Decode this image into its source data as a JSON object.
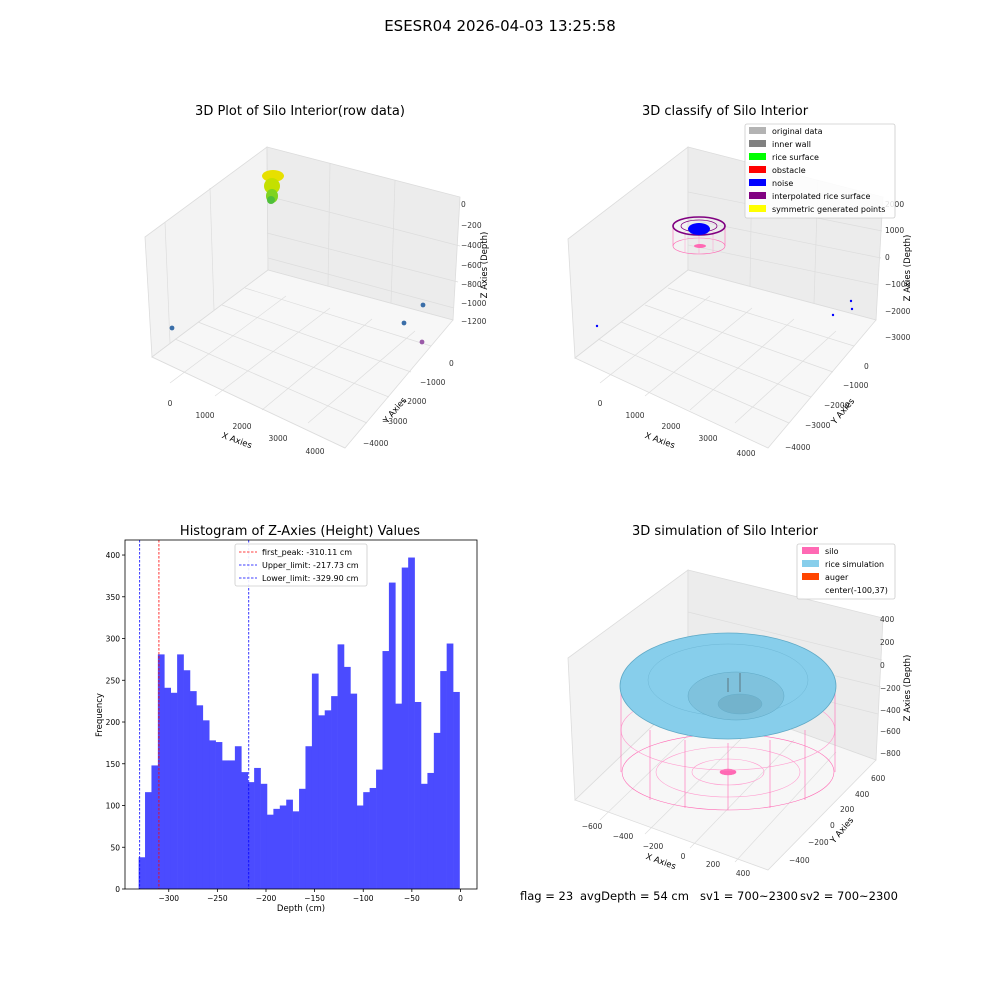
{
  "figure": {
    "title": "ESESR04 2026-04-03 13:25:58"
  },
  "panels": {
    "raw": {
      "title": "3D Plot of Silo Interior(row data)",
      "xlabel": "X Axies",
      "ylabel": "Y Axies",
      "zlabel": "Z Axies (Depth)",
      "xticks": [
        "0",
        "1000",
        "2000",
        "3000",
        "4000"
      ],
      "yticks": [
        "0",
        "−1000",
        "−2000",
        "−3000",
        "−4000"
      ],
      "zticks": [
        "0",
        "−200",
        "−400",
        "−600",
        "−800",
        "−1000",
        "−1200"
      ]
    },
    "classify": {
      "title": "3D classify of Silo Interior",
      "xlabel": "X Axies",
      "ylabel": "Y Axies",
      "zlabel": "Z Axies (Depth)",
      "xticks": [
        "0",
        "1000",
        "2000",
        "3000",
        "4000"
      ],
      "yticks": [
        "0",
        "−1000",
        "−2000",
        "−3000",
        "−4000"
      ],
      "zticks": [
        "2000",
        "1000",
        "0",
        "−1000",
        "−2000",
        "−3000"
      ],
      "legend": [
        {
          "label": "original data",
          "color": "#b3b3b3"
        },
        {
          "label": "inner wall",
          "color": "#808080"
        },
        {
          "label": "rice surface",
          "color": "#00ff00"
        },
        {
          "label": "obstacle",
          "color": "#ff0000"
        },
        {
          "label": "noise",
          "color": "#0000ff"
        },
        {
          "label": "interpolated rice surface",
          "color": "#800080"
        },
        {
          "label": "symmetric generated points",
          "color": "#ffff00"
        }
      ]
    },
    "simulation": {
      "title": "3D simulation of Silo Interior",
      "xlabel": "X Axies",
      "ylabel": "Y Axies",
      "zlabel": "Z Axies (Depth)",
      "xticks": [
        "−600",
        "−400",
        "−200",
        "0",
        "200",
        "400"
      ],
      "yticks": [
        "600",
        "400",
        "200",
        "0",
        "−200",
        "−400"
      ],
      "zticks": [
        "400",
        "200",
        "0",
        "−200",
        "−400",
        "−600",
        "−800"
      ],
      "legend": [
        {
          "label": "silo",
          "color": "#ff69b4"
        },
        {
          "label": "rice simulation",
          "color": "#87ceeb"
        },
        {
          "label": "auger",
          "color": "#ff4500"
        },
        {
          "label": "center(-100,37)",
          "color": ""
        }
      ]
    }
  },
  "status": {
    "flag": "flag = 23",
    "avg_depth": "avgDepth = 54 cm",
    "sv1": "sv1 = 700~2300",
    "sv2": "sv2 = 700~2300"
  },
  "chart_data": [
    {
      "type": "scatter",
      "title": "3D Plot of Silo Interior(row data)",
      "xlabel": "X Axies",
      "ylabel": "Y Axies",
      "zlabel": "Z Axies (Depth)"
    },
    {
      "type": "scatter",
      "title": "3D classify of Silo Interior",
      "xlabel": "X Axies",
      "ylabel": "Y Axies",
      "zlabel": "Z Axies (Depth)"
    },
    {
      "type": "bar",
      "title": "Histogram of Z-Axies (Height) Values",
      "xlabel": "Depth (cm)",
      "ylabel": "Frequency",
      "xlim": [
        -345,
        17
      ],
      "ylim": [
        0,
        418
      ],
      "bar_color": "#4b4bff",
      "bin_start": -331,
      "bin_width": 6.6,
      "values": [
        38,
        116,
        148,
        281,
        241,
        235,
        281,
        262,
        237,
        220,
        202,
        178,
        176,
        154,
        154,
        171,
        140,
        128,
        145,
        126,
        89,
        96,
        100,
        107,
        93,
        120,
        171,
        258,
        208,
        214,
        231,
        293,
        266,
        234,
        100,
        116,
        121,
        143,
        285,
        367,
        222,
        385,
        397,
        224,
        126,
        139,
        187,
        261,
        294,
        236
      ],
      "xticks": [
        -300,
        -250,
        -200,
        -150,
        -100,
        -50,
        0
      ],
      "yticks": [
        0,
        50,
        100,
        150,
        200,
        250,
        300,
        350,
        400
      ],
      "vlines": [
        {
          "label": "first_peak: -310.11 cm",
          "x": -310.11,
          "color": "#ff0000"
        },
        {
          "label": "Upper_limit: -217.73 cm",
          "x": -217.73,
          "color": "#0000ff"
        },
        {
          "label": "Lower_limit: -329.90 cm",
          "x": -329.9,
          "color": "#0000ff"
        }
      ]
    },
    {
      "type": "area",
      "title": "3D simulation of Silo Interior",
      "xlabel": "X Axies",
      "ylabel": "Y Axies",
      "zlabel": "Z Axies (Depth)"
    }
  ]
}
